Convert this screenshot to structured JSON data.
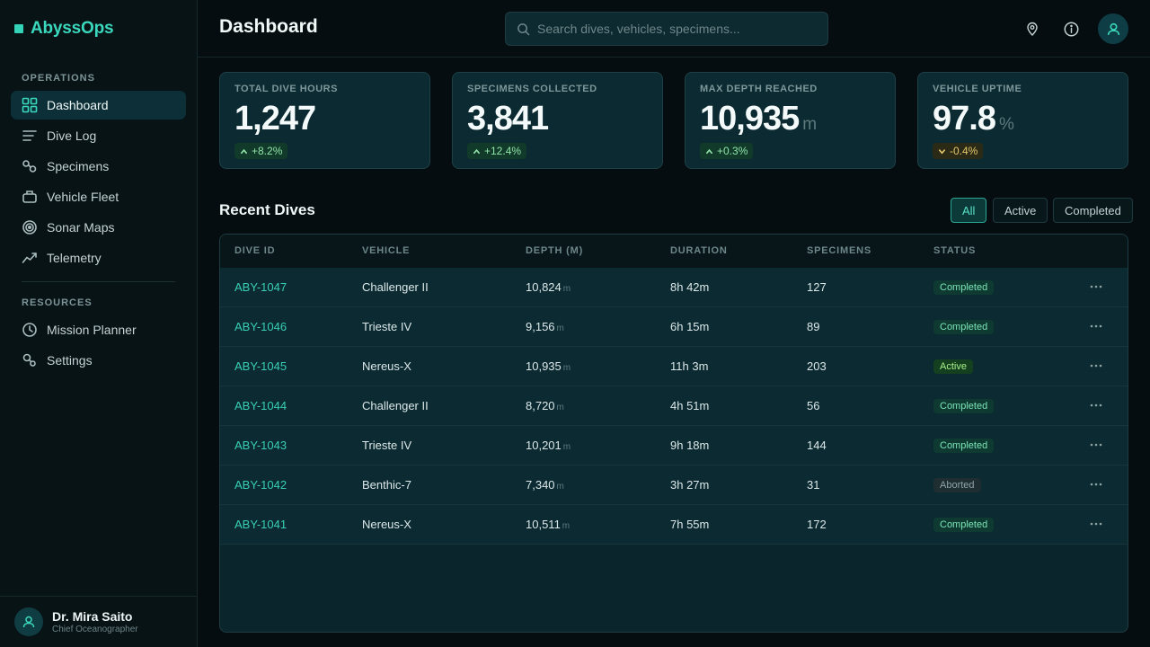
{
  "app": {
    "name": "AbyssOps"
  },
  "sidebar": {
    "sections": [
      {
        "label": "OPERATIONS"
      },
      {
        "label": "RESOURCES"
      }
    ],
    "items": [
      {
        "label": "Dashboard",
        "icon": "grid-icon",
        "active": true
      },
      {
        "label": "Dive Log",
        "icon": "list-icon"
      },
      {
        "label": "Specimens",
        "icon": "specimens-icon"
      },
      {
        "label": "Vehicle Fleet",
        "icon": "vehicle-icon"
      },
      {
        "label": "Sonar Maps",
        "icon": "sonar-icon"
      },
      {
        "label": "Telemetry",
        "icon": "telemetry-icon"
      },
      {
        "label": "Mission Planner",
        "icon": "clock-icon"
      },
      {
        "label": "Settings",
        "icon": "settings-icon"
      }
    ],
    "user": {
      "name": "Dr. Mira Saito",
      "role": "Chief Oceanographer"
    }
  },
  "header": {
    "title": "Dashboard",
    "search_placeholder": "Search dives, vehicles, specimens..."
  },
  "stats": [
    {
      "label": "TOTAL DIVE HOURS",
      "value": "1,247",
      "unit": "",
      "delta": "+8.2%",
      "trend": "up"
    },
    {
      "label": "SPECIMENS COLLECTED",
      "value": "3,841",
      "unit": "",
      "delta": "+12.4%",
      "trend": "up"
    },
    {
      "label": "MAX DEPTH REACHED",
      "value": "10,935",
      "unit": "m",
      "delta": "+0.3%",
      "trend": "up"
    },
    {
      "label": "VEHICLE UPTIME",
      "value": "97.8",
      "unit": "%",
      "delta": "-0.4%",
      "trend": "down"
    }
  ],
  "recent": {
    "title": "Recent Dives",
    "filters": [
      {
        "label": "All",
        "active": true
      },
      {
        "label": "Active"
      },
      {
        "label": "Completed"
      }
    ],
    "columns": [
      "DIVE ID",
      "VEHICLE",
      "DEPTH (M)",
      "DURATION",
      "SPECIMENS",
      "STATUS"
    ],
    "depth_unit": "m",
    "rows": [
      {
        "id": "ABY-1047",
        "vehicle": "Challenger II",
        "depth": "10,824",
        "duration": "8h 42m",
        "specimens": "127",
        "status": "Completed"
      },
      {
        "id": "ABY-1046",
        "vehicle": "Trieste IV",
        "depth": "9,156",
        "duration": "6h 15m",
        "specimens": "89",
        "status": "Completed"
      },
      {
        "id": "ABY-1045",
        "vehicle": "Nereus-X",
        "depth": "10,935",
        "duration": "11h 3m",
        "specimens": "203",
        "status": "Active"
      },
      {
        "id": "ABY-1044",
        "vehicle": "Challenger II",
        "depth": "8,720",
        "duration": "4h 51m",
        "specimens": "56",
        "status": "Completed"
      },
      {
        "id": "ABY-1043",
        "vehicle": "Trieste IV",
        "depth": "10,201",
        "duration": "9h 18m",
        "specimens": "144",
        "status": "Completed"
      },
      {
        "id": "ABY-1042",
        "vehicle": "Benthic-7",
        "depth": "7,340",
        "duration": "3h 27m",
        "specimens": "31",
        "status": "Aborted"
      },
      {
        "id": "ABY-1041",
        "vehicle": "Nereus-X",
        "depth": "10,511",
        "duration": "7h 55m",
        "specimens": "172",
        "status": "Completed"
      }
    ]
  }
}
